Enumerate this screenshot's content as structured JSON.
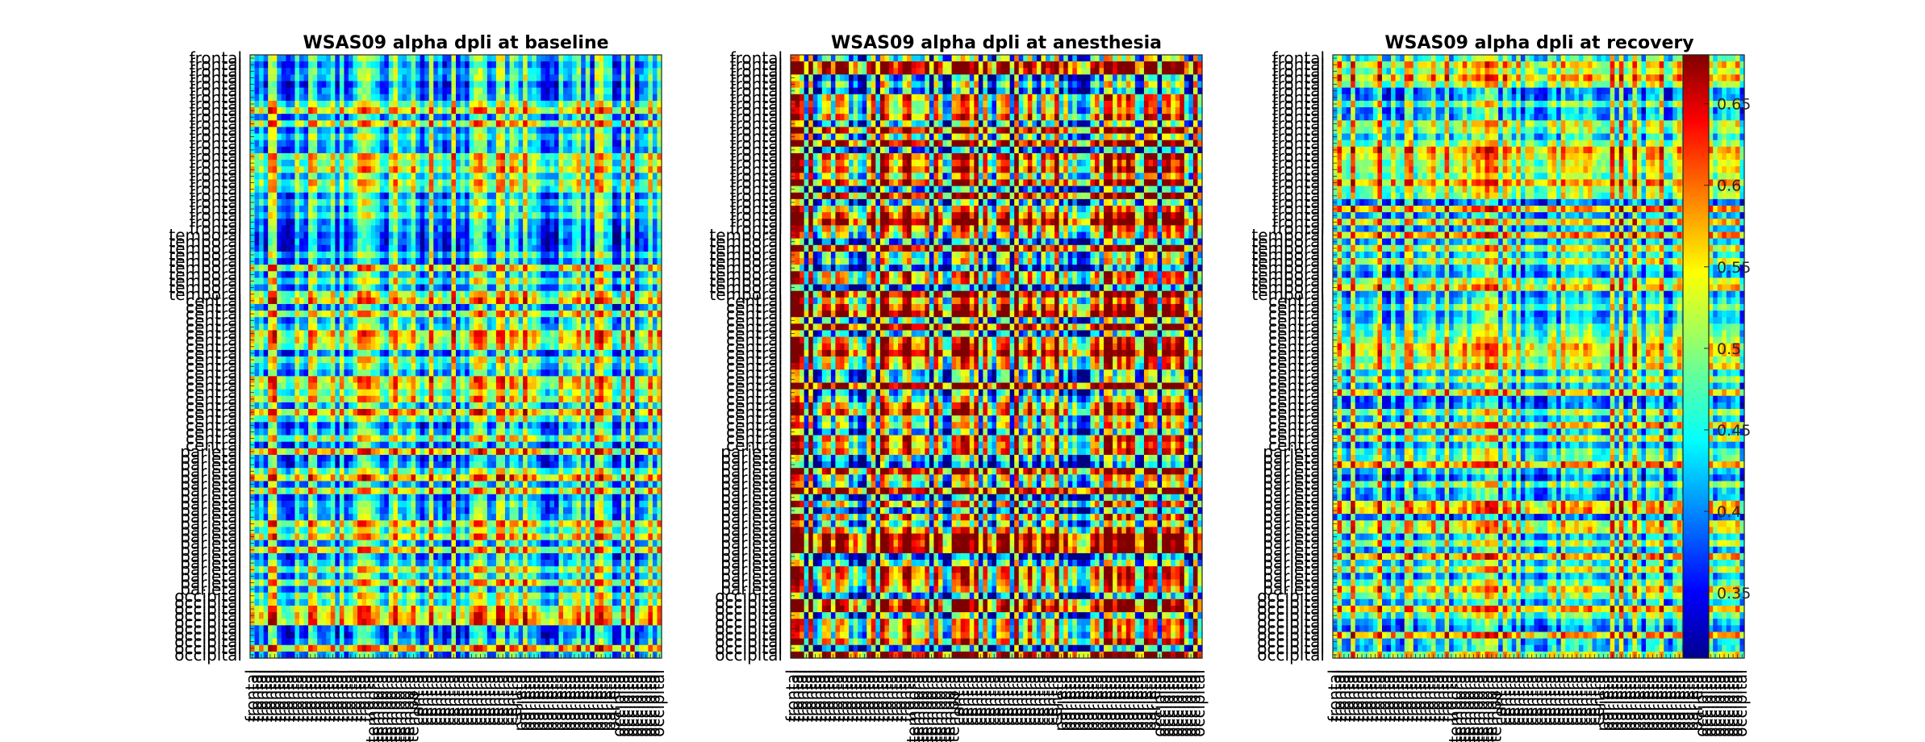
{
  "figure": {
    "panels": [
      {
        "title": "WSAS09 alpha dpli at baseline",
        "state": "baseline"
      },
      {
        "title": "WSAS09 alpha dpli at anesthesia",
        "state": "anesthesia"
      },
      {
        "title": "WSAS09 alpha dpli at recovery",
        "state": "recovery"
      }
    ],
    "colorbar": {
      "colormap": "jet",
      "ticks": [
        "0.35",
        "0.4",
        "0.45",
        "0.5",
        "0.55",
        "0.6",
        "0.65"
      ]
    }
  },
  "chart_data": [
    {
      "type": "heatmap",
      "title": "WSAS09 alpha dpli at baseline",
      "row_regions": [
        {
          "label": "frontal",
          "count": 27
        },
        {
          "label": "temporal",
          "count": 10
        },
        {
          "label": "central",
          "count": 23
        },
        {
          "label": "parietal",
          "count": 22
        },
        {
          "label": "occipital",
          "count": 10
        }
      ],
      "col_regions": [
        {
          "label": "frontal",
          "count": 27
        },
        {
          "label": "temporal",
          "count": 10
        },
        {
          "label": "central",
          "count": 23
        },
        {
          "label": "parietal",
          "count": 22
        },
        {
          "label": "occipital",
          "count": 10
        }
      ],
      "zlim": [
        0.31,
        0.68
      ],
      "grid": false
    },
    {
      "type": "heatmap",
      "title": "WSAS09 alpha dpli at anesthesia",
      "row_regions": [
        {
          "label": "frontal",
          "count": 27
        },
        {
          "label": "temporal",
          "count": 10
        },
        {
          "label": "central",
          "count": 23
        },
        {
          "label": "parietal",
          "count": 22
        },
        {
          "label": "occipital",
          "count": 10
        }
      ],
      "col_regions": [
        {
          "label": "frontal",
          "count": 27
        },
        {
          "label": "temporal",
          "count": 10
        },
        {
          "label": "central",
          "count": 23
        },
        {
          "label": "parietal",
          "count": 22
        },
        {
          "label": "occipital",
          "count": 10
        }
      ],
      "zlim": [
        0.31,
        0.68
      ],
      "grid": false
    },
    {
      "type": "heatmap",
      "title": "WSAS09 alpha dpli at recovery",
      "row_regions": [
        {
          "label": "frontal",
          "count": 27
        },
        {
          "label": "temporal",
          "count": 10
        },
        {
          "label": "central",
          "count": 23
        },
        {
          "label": "parietal",
          "count": 22
        },
        {
          "label": "occipital",
          "count": 10
        }
      ],
      "col_regions": [
        {
          "label": "frontal",
          "count": 27
        },
        {
          "label": "temporal",
          "count": 10
        },
        {
          "label": "central",
          "count": 23
        },
        {
          "label": "parietal",
          "count": 22
        },
        {
          "label": "occipital",
          "count": 10
        }
      ],
      "zlim": [
        0.31,
        0.68
      ],
      "grid": false
    }
  ]
}
